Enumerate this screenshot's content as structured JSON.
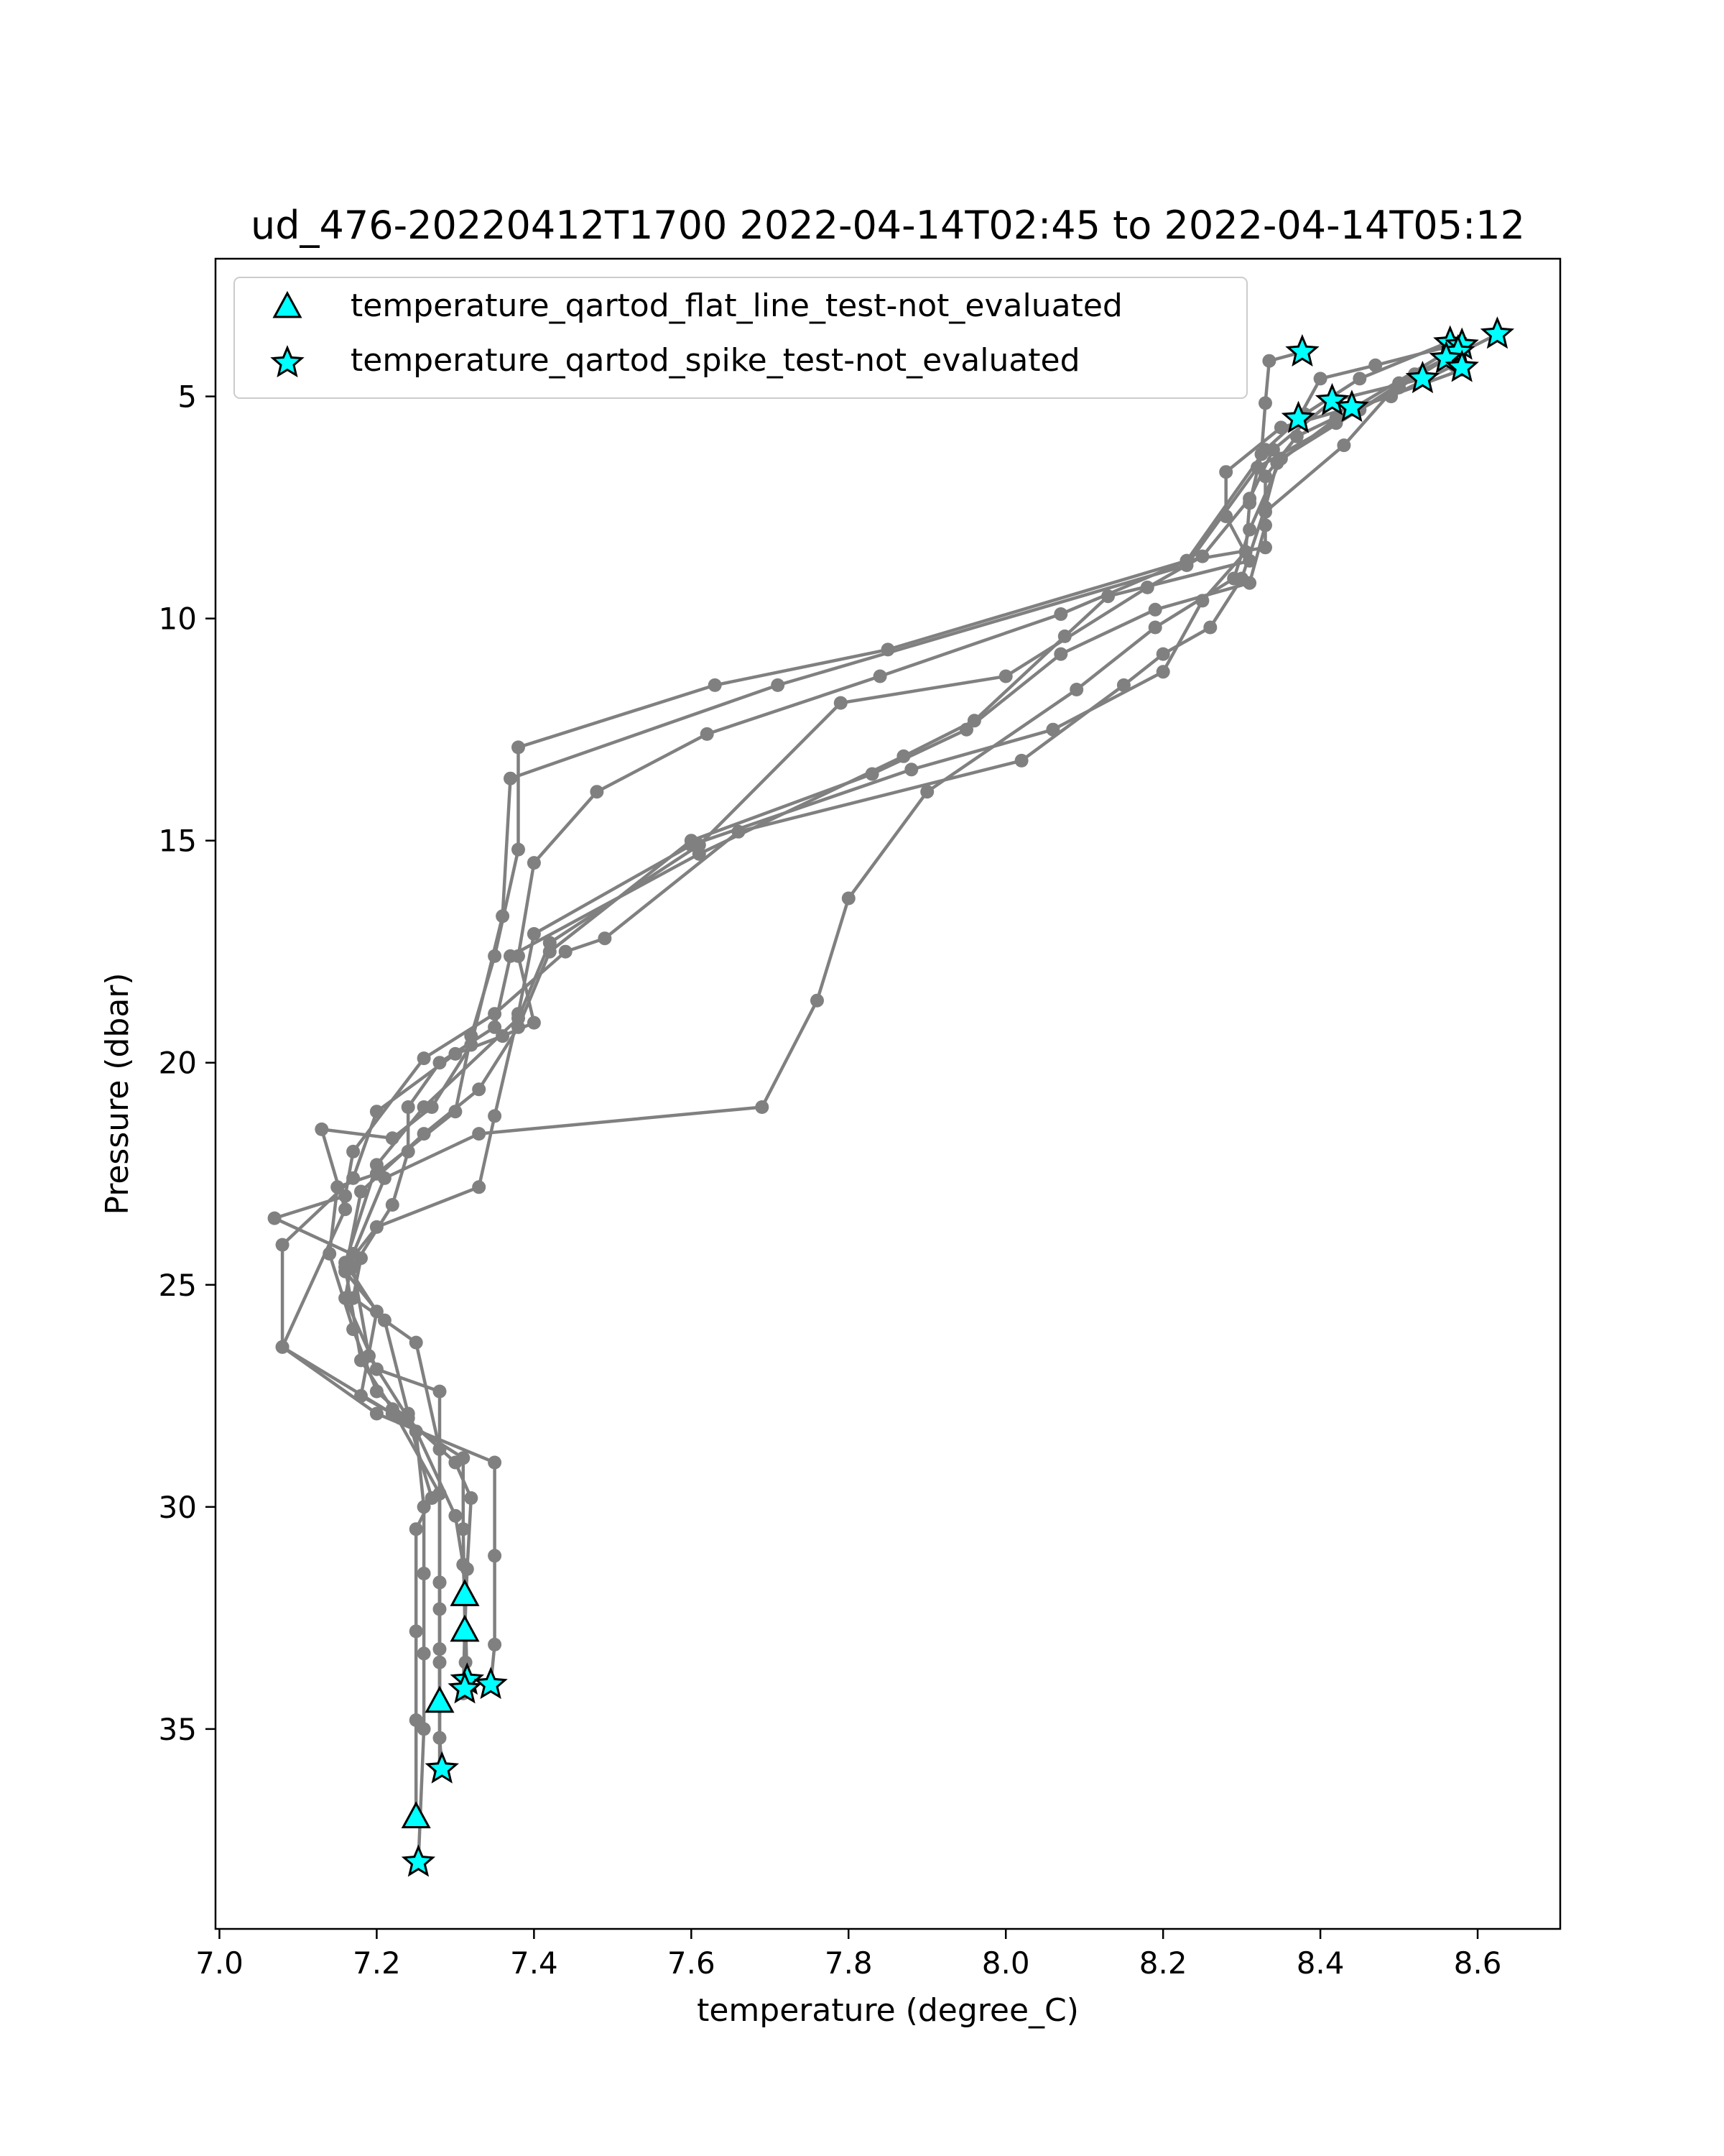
{
  "chart_data": {
    "type": "scatter",
    "title": "ud_476-20220412T1700 2022-04-14T02:45 to 2022-04-14T05:12",
    "xlabel": "temperature (degree_C)",
    "ylabel": "Pressure (dbar)",
    "xlim": [
      6.995,
      8.705
    ],
    "ylim": [
      39.5,
      1.9
    ],
    "y_inverted": true,
    "grid": false,
    "legend_position": "upper-left",
    "x_ticks": [
      7.0,
      7.2,
      7.4,
      7.6,
      7.8,
      8.0,
      8.2,
      8.4,
      8.6
    ],
    "x_tick_labels": [
      "7.0",
      "7.2",
      "7.4",
      "7.6",
      "7.8",
      "8.0",
      "8.2",
      "8.4",
      "8.6"
    ],
    "y_ticks": [
      5,
      10,
      15,
      20,
      25,
      30,
      35
    ],
    "y_tick_labels": [
      "5",
      "10",
      "15",
      "20",
      "25",
      "30",
      "35"
    ],
    "colors": {
      "profile_line": "#808080",
      "marker_fill": "#00ffff",
      "marker_edge": "#000000"
    },
    "profiles": [
      [
        [
          8.377,
          4.0
        ],
        [
          8.335,
          4.2
        ],
        [
          8.33,
          5.15
        ],
        [
          8.325,
          6.3
        ],
        [
          8.31,
          7.4
        ],
        [
          8.305,
          8.5
        ],
        [
          8.25,
          9.6
        ],
        [
          8.2,
          11.2
        ],
        [
          8.06,
          12.5
        ],
        [
          7.88,
          13.4
        ],
        [
          7.6,
          15.1
        ],
        [
          7.4,
          17.1
        ],
        [
          7.38,
          18.9
        ],
        [
          7.35,
          21.2
        ],
        [
          7.33,
          22.8
        ],
        [
          7.2,
          23.7
        ],
        [
          7.16,
          24.6
        ],
        [
          7.18,
          26.7
        ],
        [
          7.22,
          27.8
        ],
        [
          7.28,
          29.7
        ],
        [
          7.28,
          31.7
        ],
        [
          7.28,
          33.5
        ],
        [
          7.28,
          35.9
        ]
      ],
      [
        [
          8.625,
          3.6
        ],
        [
          8.5,
          4.7
        ],
        [
          8.43,
          6.1
        ],
        [
          8.33,
          7.6
        ],
        [
          8.33,
          8.4
        ],
        [
          8.23,
          8.7
        ],
        [
          7.85,
          10.7
        ],
        [
          7.63,
          11.5
        ],
        [
          7.38,
          12.9
        ],
        [
          7.38,
          15.2
        ],
        [
          7.35,
          17.6
        ],
        [
          7.32,
          19.4
        ],
        [
          7.3,
          21.1
        ],
        [
          7.2,
          22.5
        ],
        [
          7.15,
          22.8
        ],
        [
          7.14,
          24.3
        ],
        [
          7.17,
          26.0
        ],
        [
          7.2,
          27.4
        ],
        [
          7.3,
          29.0
        ],
        [
          7.32,
          29.8
        ],
        [
          7.315,
          31.4
        ],
        [
          7.312,
          32.8
        ],
        [
          7.31,
          34.2
        ]
      ],
      [
        [
          8.58,
          4.4
        ],
        [
          8.44,
          5.3
        ],
        [
          8.37,
          5.9
        ],
        [
          8.33,
          6.8
        ],
        [
          8.33,
          7.9
        ],
        [
          8.31,
          9.2
        ],
        [
          8.19,
          9.8
        ],
        [
          8.07,
          10.8
        ],
        [
          7.95,
          12.5
        ],
        [
          7.83,
          13.5
        ],
        [
          7.6,
          15.0
        ],
        [
          7.42,
          17.5
        ],
        [
          7.38,
          19.2
        ],
        [
          7.33,
          20.6
        ],
        [
          7.26,
          21.6
        ],
        [
          7.18,
          22.9
        ],
        [
          7.16,
          24.7
        ],
        [
          7.21,
          25.8
        ],
        [
          7.24,
          27.9
        ],
        [
          7.3,
          30.2
        ],
        [
          7.31,
          31.3
        ],
        [
          7.312,
          32.0
        ],
        [
          7.315,
          33.9
        ]
      ],
      [
        [
          8.565,
          4.1
        ],
        [
          8.5,
          4.8
        ],
        [
          8.42,
          5.6
        ],
        [
          8.32,
          6.6
        ],
        [
          8.23,
          8.8
        ],
        [
          7.71,
          11.5
        ],
        [
          7.37,
          13.6
        ],
        [
          7.36,
          16.7
        ],
        [
          7.32,
          19.6
        ],
        [
          7.27,
          21.0
        ],
        [
          7.22,
          21.7
        ],
        [
          7.13,
          21.5
        ],
        [
          7.16,
          23.3
        ],
        [
          7.08,
          26.4
        ],
        [
          7.2,
          27.9
        ],
        [
          7.35,
          29.0
        ],
        [
          7.35,
          31.1
        ],
        [
          7.35,
          33.1
        ],
        [
          7.345,
          34.0
        ]
      ],
      [
        [
          8.53,
          4.6
        ],
        [
          8.415,
          5.1
        ],
        [
          8.34,
          6.2
        ],
        [
          8.31,
          7.3
        ],
        [
          8.25,
          8.6
        ],
        [
          8.18,
          9.3
        ],
        [
          8.0,
          11.3
        ],
        [
          7.79,
          11.9
        ],
        [
          7.61,
          15.1
        ],
        [
          7.42,
          17.3
        ],
        [
          7.38,
          19.0
        ],
        [
          7.26,
          21.0
        ],
        [
          7.2,
          22.3
        ],
        [
          7.16,
          24.5
        ],
        [
          7.2,
          25.6
        ],
        [
          7.18,
          27.5
        ],
        [
          7.23,
          28.0
        ],
        [
          7.31,
          28.9
        ],
        [
          7.31,
          30.5
        ],
        [
          7.313,
          33.5
        ]
      ],
      [
        [
          8.372,
          5.5
        ],
        [
          8.4,
          4.6
        ],
        [
          8.47,
          4.3
        ],
        [
          8.58,
          3.8
        ],
        [
          8.42,
          5.5
        ],
        [
          8.345,
          6.5
        ],
        [
          8.33,
          7.5
        ],
        [
          8.3,
          9.1
        ],
        [
          8.26,
          10.2
        ],
        [
          8.2,
          10.8
        ],
        [
          8.15,
          11.5
        ],
        [
          8.02,
          13.2
        ],
        [
          7.66,
          14.8
        ],
        [
          7.49,
          17.2
        ],
        [
          7.44,
          17.5
        ],
        [
          7.35,
          18.9
        ],
        [
          7.26,
          19.9
        ],
        [
          7.17,
          22.0
        ],
        [
          7.16,
          23.0
        ],
        [
          7.07,
          23.5
        ],
        [
          7.18,
          24.4
        ],
        [
          7.17,
          25.3
        ],
        [
          7.25,
          26.3
        ],
        [
          7.28,
          28.7
        ],
        [
          7.28,
          32.3
        ],
        [
          7.28,
          34.4
        ]
      ],
      [
        [
          8.57,
          4.3
        ],
        [
          8.49,
          5.0
        ],
        [
          8.35,
          5.7
        ],
        [
          8.28,
          6.7
        ],
        [
          8.28,
          7.7
        ],
        [
          8.31,
          8.7
        ],
        [
          8.13,
          9.5
        ],
        [
          8.075,
          10.4
        ],
        [
          7.96,
          12.3
        ],
        [
          7.87,
          13.1
        ],
        [
          7.61,
          15.3
        ],
        [
          7.37,
          17.6
        ],
        [
          7.35,
          19.2
        ],
        [
          7.28,
          20.0
        ],
        [
          7.24,
          21.0
        ],
        [
          7.24,
          22.0
        ],
        [
          7.22,
          23.2
        ],
        [
          7.17,
          24.6
        ],
        [
          7.19,
          26.6
        ],
        [
          7.24,
          28.0
        ],
        [
          7.27,
          29.8
        ],
        [
          7.25,
          30.5
        ],
        [
          7.25,
          32.8
        ],
        [
          7.25,
          34.8
        ],
        [
          7.25,
          37.0
        ]
      ],
      [
        [
          8.56,
          3.8
        ],
        [
          8.45,
          4.6
        ],
        [
          8.38,
          5.4
        ],
        [
          8.33,
          6.2
        ],
        [
          8.23,
          8.7
        ],
        [
          8.07,
          9.9
        ],
        [
          7.84,
          11.3
        ],
        [
          7.62,
          12.6
        ],
        [
          7.48,
          13.9
        ],
        [
          7.4,
          15.5
        ],
        [
          7.38,
          17.6
        ],
        [
          7.4,
          19.1
        ],
        [
          7.36,
          19.4
        ],
        [
          7.3,
          19.8
        ],
        [
          7.2,
          21.1
        ],
        [
          7.17,
          22.6
        ],
        [
          7.08,
          24.1
        ],
        [
          7.08,
          26.4
        ],
        [
          7.22,
          27.9
        ],
        [
          7.25,
          28.3
        ],
        [
          7.26,
          30.0
        ],
        [
          7.26,
          31.5
        ],
        [
          7.26,
          33.3
        ],
        [
          7.26,
          35.0
        ],
        [
          7.253,
          38.0
        ]
      ],
      [
        [
          8.575,
          4.0
        ],
        [
          8.52,
          4.5
        ],
        [
          8.45,
          5.3
        ],
        [
          8.35,
          6.4
        ],
        [
          8.31,
          8.0
        ],
        [
          8.29,
          9.1
        ],
        [
          8.19,
          10.2
        ],
        [
          8.09,
          11.6
        ],
        [
          7.9,
          13.9
        ],
        [
          7.8,
          16.3
        ],
        [
          7.76,
          18.6
        ],
        [
          7.69,
          21.0
        ],
        [
          7.33,
          21.6
        ],
        [
          7.21,
          22.6
        ],
        [
          7.17,
          24.3
        ],
        [
          7.16,
          25.3
        ],
        [
          7.2,
          26.9
        ],
        [
          7.28,
          27.4
        ],
        [
          7.28,
          29.7
        ],
        [
          7.28,
          31.7
        ],
        [
          7.28,
          33.2
        ],
        [
          7.28,
          35.2
        ],
        [
          7.283,
          35.9
        ]
      ]
    ],
    "series": [
      {
        "name": "temperature_qartod_flat_line_test-not_evaluated",
        "marker": "triangle",
        "points": [
          [
            7.312,
            32.0
          ],
          [
            7.312,
            32.8
          ],
          [
            7.28,
            34.4
          ],
          [
            7.25,
            37.0
          ]
        ]
      },
      {
        "name": "temperature_qartod_spike_test-not_evaluated",
        "marker": "star",
        "points": [
          [
            8.377,
            4.0
          ],
          [
            8.625,
            3.6
          ],
          [
            8.565,
            3.8
          ],
          [
            8.58,
            3.85
          ],
          [
            8.575,
            4.0
          ],
          [
            8.56,
            4.15
          ],
          [
            8.58,
            4.35
          ],
          [
            8.53,
            4.6
          ],
          [
            8.415,
            5.1
          ],
          [
            8.44,
            5.25
          ],
          [
            8.372,
            5.5
          ],
          [
            7.315,
            33.9
          ],
          [
            7.312,
            34.1
          ],
          [
            7.345,
            34.0
          ],
          [
            7.283,
            35.9
          ],
          [
            7.253,
            38.0
          ]
        ]
      }
    ]
  }
}
